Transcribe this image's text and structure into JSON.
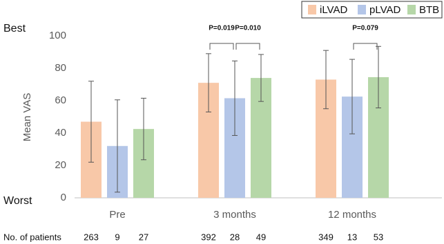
{
  "chart_data": {
    "type": "bar",
    "y_label": "Mean VAS",
    "y_top_label": "Best",
    "y_bottom_label": "Worst",
    "categories": [
      "Pre",
      "3 months",
      "12 months"
    ],
    "series": [
      {
        "name": "iLVAD",
        "color": "#f8c8a8",
        "values": [
          47,
          71,
          73
        ],
        "errors": [
          25,
          18,
          18
        ],
        "patients": [
          263,
          392,
          349
        ]
      },
      {
        "name": "pLVAD",
        "color": "#b4c6e8",
        "values": [
          32,
          61.5,
          62.5
        ],
        "errors": [
          28.5,
          23,
          23
        ],
        "patients": [
          9,
          28,
          13
        ]
      },
      {
        "name": "BTB",
        "color": "#b6d7a8",
        "values": [
          42.5,
          74,
          74.5
        ],
        "errors": [
          19,
          14.5,
          19
        ],
        "patients": [
          27,
          49,
          53
        ]
      }
    ],
    "patients_label": "No. of patients",
    "annotations": [
      {
        "text": "P=0.019",
        "category": "3 months",
        "between": [
          "iLVAD",
          "pLVAD"
        ]
      },
      {
        "text": "P=0.010",
        "category": "3 months",
        "between": [
          "pLVAD",
          "BTB"
        ]
      },
      {
        "text": "P=0.079",
        "category": "12 months",
        "between": [
          "pLVAD",
          "BTB"
        ]
      }
    ],
    "ylim": [
      0,
      100
    ],
    "yticks": [
      0,
      20,
      40,
      60,
      80,
      100
    ],
    "grid": false,
    "legend": "top-right"
  }
}
